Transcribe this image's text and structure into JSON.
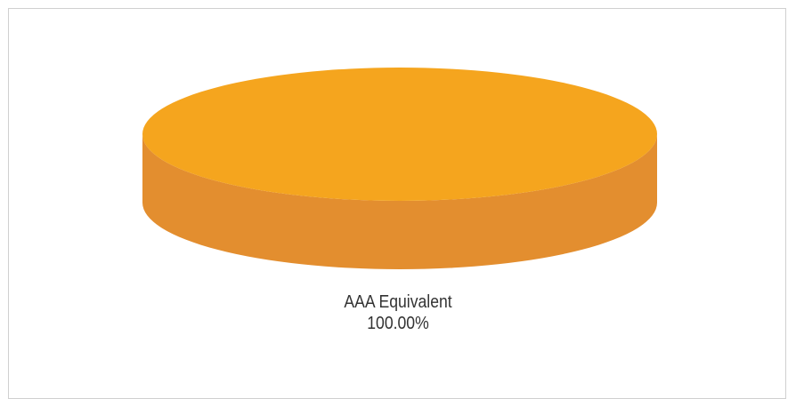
{
  "chart_data": {
    "type": "pie",
    "three_d": true,
    "slices": [
      {
        "label": "AAA Equivalent",
        "value": 100.0,
        "value_label": "100.00%",
        "color_top": "#f5a51e",
        "color_side": "#e38e2f"
      }
    ],
    "legend": "none",
    "frame_border_color": "#d0d0d0"
  }
}
